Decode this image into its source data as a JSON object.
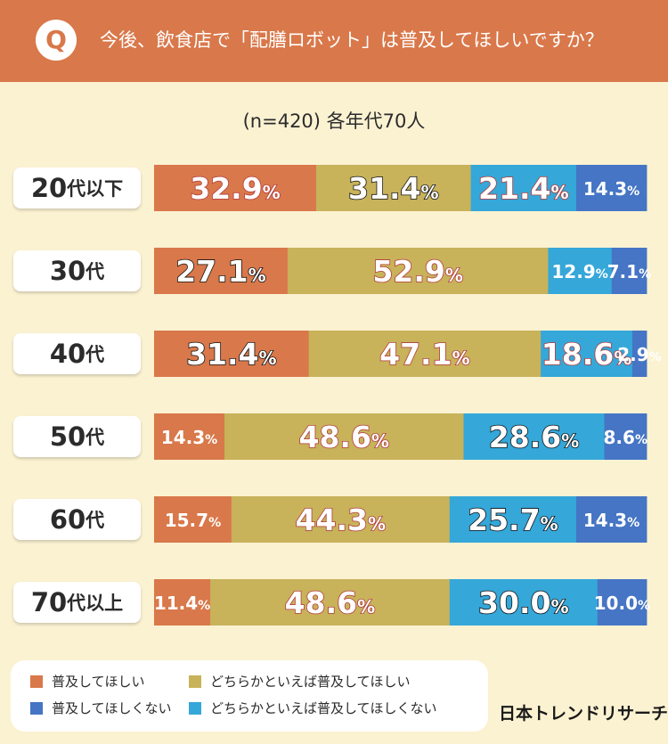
{
  "question": {
    "badge": "Q",
    "text": "今後、飲食店で「配膳ロボット」は普及してほしいですか？"
  },
  "brand": "日本トレンドリサーチ",
  "colors": {
    "header": "#d9784a",
    "background": "#fbf2d2"
  },
  "chart_data": {
    "type": "bar",
    "orientation": "horizontal",
    "stacked": true,
    "percent_stacked": true,
    "subtitle": "(n=420) 各年代70人",
    "categories": [
      {
        "num": "20",
        "kan": "代以下"
      },
      {
        "num": "30",
        "kan": "代"
      },
      {
        "num": "40",
        "kan": "代"
      },
      {
        "num": "50",
        "kan": "代"
      },
      {
        "num": "60",
        "kan": "代"
      },
      {
        "num": "70",
        "kan": "代以上"
      }
    ],
    "unit": "%",
    "series": [
      {
        "name": "普及してほしい",
        "color": "#d9784a",
        "values": [
          32.9,
          27.1,
          31.4,
          14.3,
          15.7,
          11.4
        ]
      },
      {
        "name": "どちらかといえば普及してほしい",
        "color": "#c8b25a",
        "values": [
          31.4,
          52.9,
          47.1,
          48.6,
          44.3,
          48.6
        ]
      },
      {
        "name": "どちらかといえば普及してほしくない",
        "color": "#35a7d9",
        "values": [
          21.4,
          12.9,
          18.6,
          28.6,
          25.7,
          30.0
        ]
      },
      {
        "name": "普及してほしくない",
        "color": "#4575c4",
        "values": [
          14.3,
          7.1,
          2.9,
          8.6,
          14.3,
          10.0
        ]
      }
    ],
    "legend_order": [
      0,
      1,
      3,
      2
    ],
    "legend_position": "bottom-left",
    "xlim": [
      0,
      100
    ],
    "grid": false
  }
}
